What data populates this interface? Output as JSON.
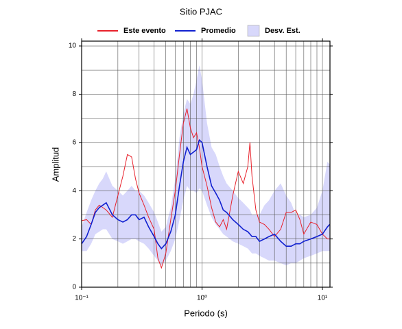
{
  "chart_data": {
    "type": "line",
    "title": "Sitio PJAC",
    "x_label": "Periodo (s)",
    "y_label": "Amplitud",
    "xscale": "log",
    "grid": true,
    "legend": "top",
    "xlim": [
      0.1,
      11.55
    ],
    "ylim": [
      0,
      10.2
    ],
    "xticks": [
      {
        "value": 0.1,
        "label": "10⁻¹"
      },
      {
        "value": 1,
        "label": "10⁰"
      },
      {
        "value": 10,
        "label": "10¹"
      }
    ],
    "xminor": [
      0.2,
      0.3,
      0.4,
      0.5,
      0.6,
      0.7,
      0.8,
      0.9,
      2,
      3,
      4,
      5,
      6,
      7,
      8,
      9
    ],
    "yticks": [
      0,
      2,
      4,
      6,
      8,
      10
    ],
    "yminor": [
      1,
      3,
      5,
      7,
      9
    ],
    "x": [
      0.1,
      0.11,
      0.12,
      0.13,
      0.14,
      0.15,
      0.16,
      0.18,
      0.2,
      0.22,
      0.24,
      0.26,
      0.28,
      0.3,
      0.33,
      0.36,
      0.4,
      0.43,
      0.46,
      0.5,
      0.55,
      0.6,
      0.65,
      0.7,
      0.75,
      0.8,
      0.85,
      0.9,
      0.95,
      1.0,
      1.1,
      1.2,
      1.3,
      1.4,
      1.5,
      1.6,
      1.8,
      2.0,
      2.2,
      2.4,
      2.5,
      2.6,
      2.8,
      3.0,
      3.3,
      3.6,
      4.0,
      4.5,
      5.0,
      5.5,
      6,
      6.5,
      7,
      8,
      9,
      10,
      11,
      11.5
    ],
    "band": {
      "name": "Desv. Est.",
      "color": "#d8d8fb",
      "upper": [
        2.5,
        3.1,
        3.6,
        4.0,
        4.3,
        4.5,
        4.8,
        4.2,
        4.0,
        3.8,
        4.0,
        4.2,
        4.0,
        4.0,
        3.8,
        3.5,
        3.1,
        2.7,
        2.3,
        2.5,
        3.3,
        4.5,
        6.2,
        7.2,
        7.8,
        7.6,
        8.0,
        8.6,
        9.2,
        8.6,
        6.8,
        5.8,
        5.5,
        5.0,
        4.6,
        4.3,
        4.0,
        3.7,
        3.5,
        3.3,
        3.2,
        3.0,
        3.0,
        3.0,
        3.4,
        3.6,
        4.0,
        4.3,
        3.8,
        3.5,
        3.0,
        3.0,
        2.9,
        3.0,
        3.3,
        4.0,
        5.2,
        5.1
      ],
      "lower": [
        1.5,
        1.5,
        1.8,
        2.2,
        2.3,
        2.4,
        2.4,
        2.0,
        1.9,
        1.8,
        1.9,
        2.0,
        2.0,
        1.9,
        1.8,
        1.6,
        1.3,
        1.1,
        0.9,
        1.1,
        1.5,
        2.0,
        2.8,
        3.6,
        4.2,
        4.0,
        4.0,
        3.9,
        4.1,
        4.0,
        3.4,
        2.9,
        2.6,
        2.4,
        2.2,
        2.1,
        1.9,
        1.8,
        1.7,
        1.6,
        1.5,
        1.4,
        1.4,
        1.3,
        1.2,
        1.1,
        1.1,
        1.0,
        0.9,
        1.0,
        1.0,
        1.1,
        1.2,
        1.3,
        1.4,
        1.5,
        1.5,
        1.5
      ]
    },
    "series": [
      {
        "name": "Este evento",
        "color": "#e8202a",
        "values": [
          2.76,
          2.8,
          2.6,
          3.2,
          3.4,
          3.3,
          3.2,
          2.9,
          3.8,
          4.6,
          5.5,
          5.4,
          4.5,
          3.9,
          3.4,
          2.9,
          2.4,
          1.2,
          0.8,
          1.4,
          2.8,
          4.0,
          5.5,
          6.8,
          7.4,
          6.6,
          6.2,
          6.4,
          5.8,
          5.0,
          4.2,
          3.3,
          2.7,
          2.5,
          2.8,
          2.4,
          3.8,
          4.8,
          4.3,
          5.0,
          6.0,
          4.6,
          3.2,
          2.7,
          2.6,
          2.4,
          2.1,
          2.4,
          3.1,
          3.1,
          3.2,
          2.8,
          2.2,
          2.7,
          2.6,
          2.2,
          2.0,
          2.0
        ]
      },
      {
        "name": "Promedio",
        "color": "#1020d0",
        "values": [
          1.8,
          2.1,
          2.6,
          3.1,
          3.3,
          3.4,
          3.5,
          3.0,
          2.8,
          2.7,
          2.8,
          3.0,
          3.0,
          2.8,
          2.9,
          2.5,
          2.1,
          1.8,
          1.6,
          1.8,
          2.3,
          3.0,
          4.2,
          5.2,
          5.8,
          5.5,
          5.6,
          5.7,
          6.1,
          6.0,
          5.0,
          4.2,
          3.9,
          3.6,
          3.2,
          3.1,
          2.8,
          2.6,
          2.4,
          2.3,
          2.2,
          2.1,
          2.1,
          1.9,
          2.0,
          2.1,
          2.2,
          1.9,
          1.7,
          1.7,
          1.8,
          1.8,
          1.9,
          2.0,
          2.1,
          2.2,
          2.5,
          2.6
        ]
      }
    ]
  }
}
